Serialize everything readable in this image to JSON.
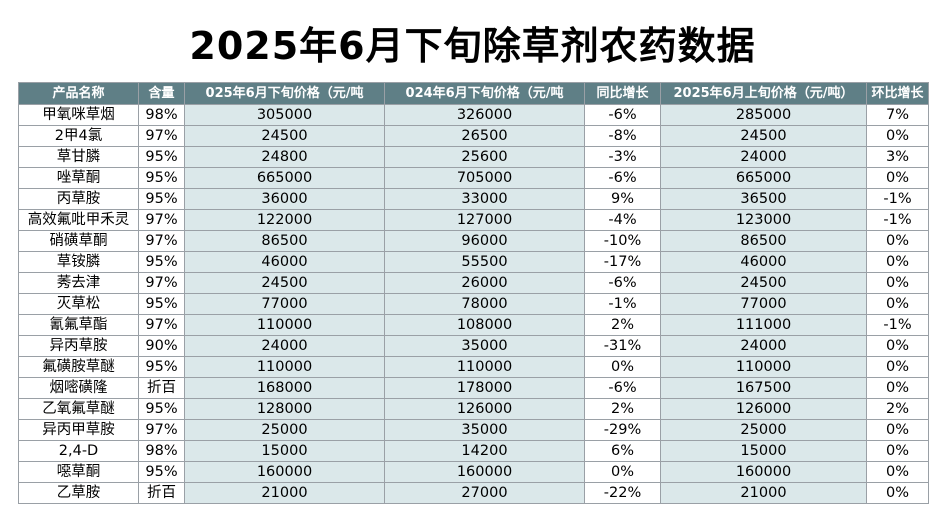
{
  "title": "2025年6月下旬除草剂农药数据",
  "table": {
    "headers": [
      "产品名称",
      "含量",
      "025年6月下旬价格（元/吨",
      "024年6月下旬价格（元/吨",
      "同比增长",
      "2025年6月上旬价格（元/吨）",
      "环比增长"
    ],
    "rows": [
      [
        "甲氧咪草烟",
        "98%",
        "305000",
        "326000",
        "-6%",
        "285000",
        "7%"
      ],
      [
        "2甲4氯",
        "97%",
        "24500",
        "26500",
        "-8%",
        "24500",
        "0%"
      ],
      [
        "草甘膦",
        "95%",
        "24800",
        "25600",
        "-3%",
        "24000",
        "3%"
      ],
      [
        "唑草酮",
        "95%",
        "665000",
        "705000",
        "-6%",
        "665000",
        "0%"
      ],
      [
        "丙草胺",
        "95%",
        "36000",
        "33000",
        "9%",
        "36500",
        "-1%"
      ],
      [
        "高效氟吡甲禾灵",
        "97%",
        "122000",
        "127000",
        "-4%",
        "123000",
        "-1%"
      ],
      [
        "硝磺草酮",
        "97%",
        "86500",
        "96000",
        "-10%",
        "86500",
        "0%"
      ],
      [
        "草铵膦",
        "95%",
        "46000",
        "55500",
        "-17%",
        "46000",
        "0%"
      ],
      [
        "莠去津",
        "97%",
        "24500",
        "26000",
        "-6%",
        "24500",
        "0%"
      ],
      [
        "灭草松",
        "95%",
        "77000",
        "78000",
        "-1%",
        "77000",
        "0%"
      ],
      [
        "氰氟草酯",
        "97%",
        "110000",
        "108000",
        "2%",
        "111000",
        "-1%"
      ],
      [
        "异丙草胺",
        "90%",
        "24000",
        "35000",
        "-31%",
        "24000",
        "0%"
      ],
      [
        "氟磺胺草醚",
        "95%",
        "110000",
        "110000",
        "0%",
        "110000",
        "0%"
      ],
      [
        "烟嘧磺隆",
        "折百",
        "168000",
        "178000",
        "-6%",
        "167500",
        "0%"
      ],
      [
        "乙氧氟草醚",
        "95%",
        "128000",
        "126000",
        "2%",
        "126000",
        "2%"
      ],
      [
        "异丙甲草胺",
        "97%",
        "25000",
        "35000",
        "-29%",
        "25000",
        "0%"
      ],
      [
        "2,4-D",
        "98%",
        "15000",
        "14200",
        "6%",
        "15000",
        "0%"
      ],
      [
        "噁草酮",
        "95%",
        "160000",
        "160000",
        "0%",
        "160000",
        "0%"
      ],
      [
        "乙草胺",
        "折百",
        "21000",
        "27000",
        "-22%",
        "21000",
        "0%"
      ]
    ]
  }
}
